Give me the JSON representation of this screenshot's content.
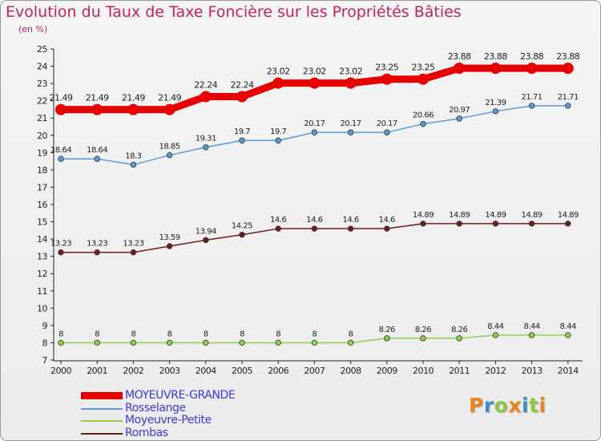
{
  "header": {
    "title": "Evolution du Taux de Taxe Foncière sur les Propriétés Bâties",
    "unit": "(en %)"
  },
  "logo": {
    "text": "Proxiti",
    "colors": [
      "#e8831f",
      "#3a8fd0",
      "#8fc63f",
      "#e8831f",
      "#3a8fd0",
      "#8fc63f",
      "#e8831f"
    ]
  },
  "chart_data": {
    "type": "line",
    "title": "Evolution du Taux de Taxe Foncière sur les Propriétés Bâties",
    "ylabel": "(en %)",
    "xlabel": "",
    "x": [
      2000,
      2001,
      2002,
      2003,
      2004,
      2005,
      2006,
      2007,
      2008,
      2009,
      2010,
      2011,
      2012,
      2013,
      2014
    ],
    "ylim": [
      7,
      25
    ],
    "yticks": [
      7,
      8,
      9,
      10,
      11,
      12,
      13,
      14,
      15,
      16,
      17,
      18,
      19,
      20,
      21,
      22,
      23,
      24,
      25
    ],
    "grid": false,
    "legend": "bottom-left",
    "series": [
      {
        "name": "MOYEUVRE-GRANDE",
        "color": "#e60000",
        "values": [
          21.49,
          21.49,
          21.49,
          21.49,
          22.24,
          22.24,
          23.02,
          23.02,
          23.02,
          23.25,
          23.25,
          23.88,
          23.88,
          23.88,
          23.88
        ],
        "labels": [
          "21.49",
          "21.49",
          "21.49",
          "21.49",
          "22.24",
          "22.24",
          "23.02",
          "23.02",
          "23.02",
          "23.25",
          "23.25",
          "23.88",
          "23.88",
          "23.88",
          "23.88"
        ]
      },
      {
        "name": "Rosselange",
        "color": "#5b9bd5",
        "values": [
          18.64,
          18.64,
          18.3,
          18.85,
          19.31,
          19.7,
          19.7,
          20.17,
          20.17,
          20.17,
          20.66,
          20.97,
          21.39,
          21.71,
          21.71
        ],
        "labels": [
          "18.64",
          "18.64",
          "18.3",
          "18.85",
          "19.31",
          "19.7",
          "19.7",
          "20.17",
          "20.17",
          "20.17",
          "20.66",
          "20.97",
          "21.39",
          "21.71",
          "21.71"
        ]
      },
      {
        "name": "Moyeuvre-Petite",
        "color": "#8fd24a",
        "values": [
          8,
          8,
          8,
          8,
          8,
          8,
          8,
          8,
          8,
          8.26,
          8.26,
          8.26,
          8.44,
          8.44,
          8.44
        ],
        "labels": [
          "8",
          "8",
          "8",
          "8",
          "8",
          "8",
          "8",
          "8",
          "8",
          "8.26",
          "8.26",
          "8.26",
          "8.44",
          "8.44",
          "8.44"
        ]
      },
      {
        "name": "Rombas",
        "color": "#6b1e1e",
        "values": [
          13.23,
          13.23,
          13.23,
          13.59,
          13.94,
          14.25,
          14.6,
          14.6,
          14.6,
          14.6,
          14.89,
          14.89,
          14.89,
          14.89,
          14.89
        ],
        "labels": [
          "13.23",
          "13.23",
          "13.23",
          "13.59",
          "13.94",
          "14.25",
          "14.6",
          "14.6",
          "14.6",
          "14.6",
          "14.89",
          "14.89",
          "14.89",
          "14.89",
          "14.89"
        ]
      }
    ]
  }
}
